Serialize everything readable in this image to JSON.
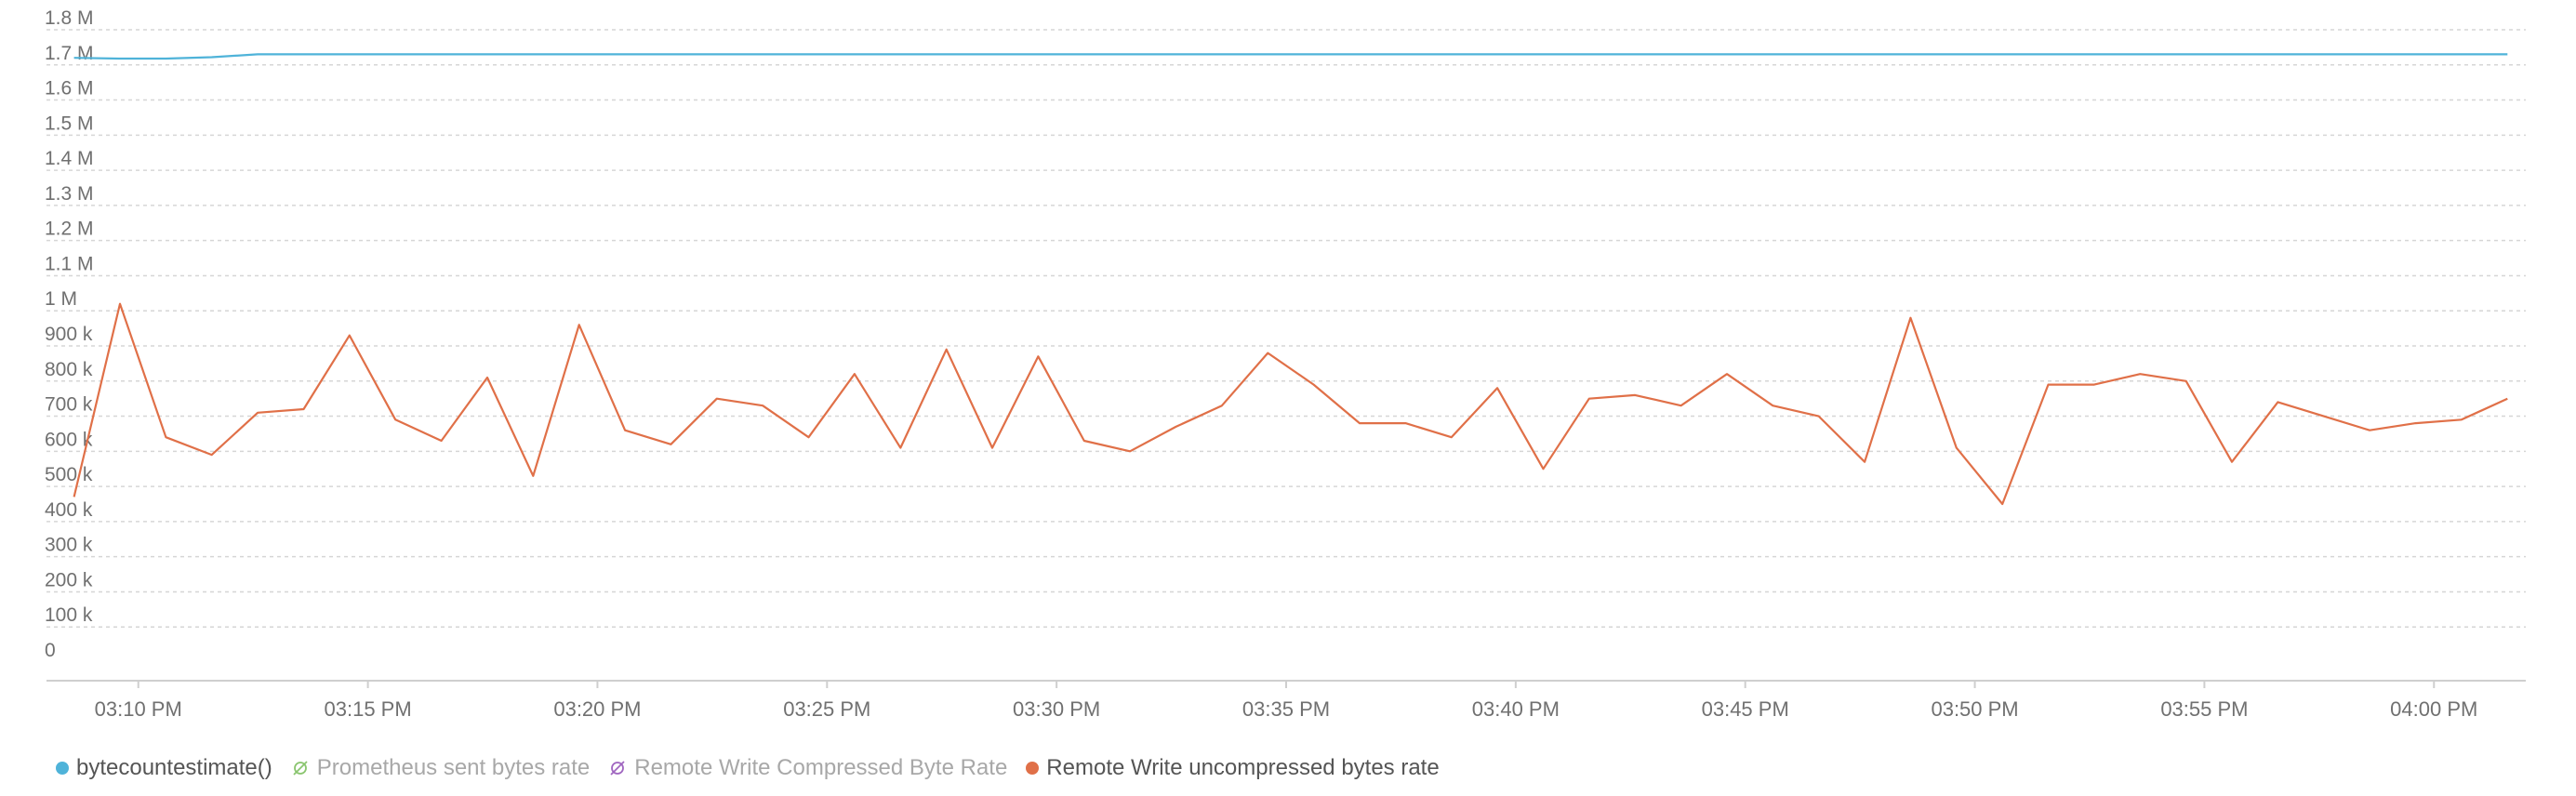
{
  "chart_data": {
    "type": "line",
    "title": "",
    "xlabel": "",
    "ylabel": "",
    "ylim": [
      0,
      1800000
    ],
    "y_ticks": [
      {
        "value": 0,
        "label": "0"
      },
      {
        "value": 100000,
        "label": "100 k"
      },
      {
        "value": 200000,
        "label": "200 k"
      },
      {
        "value": 300000,
        "label": "300 k"
      },
      {
        "value": 400000,
        "label": "400 k"
      },
      {
        "value": 500000,
        "label": "500 k"
      },
      {
        "value": 600000,
        "label": "600 k"
      },
      {
        "value": 700000,
        "label": "700 k"
      },
      {
        "value": 800000,
        "label": "800 k"
      },
      {
        "value": 900000,
        "label": "900 k"
      },
      {
        "value": 1000000,
        "label": "1 M"
      },
      {
        "value": 1100000,
        "label": "1.1 M"
      },
      {
        "value": 1200000,
        "label": "1.2 M"
      },
      {
        "value": 1300000,
        "label": "1.3 M"
      },
      {
        "value": 1400000,
        "label": "1.4 M"
      },
      {
        "value": 1500000,
        "label": "1.5 M"
      },
      {
        "value": 1600000,
        "label": "1.6 M"
      },
      {
        "value": 1700000,
        "label": "1.7 M"
      },
      {
        "value": 1800000,
        "label": "1.8 M"
      }
    ],
    "x_range": [
      "03:08",
      "04:02"
    ],
    "x_ticks": [
      {
        "time": "03:10",
        "label": "03:10 PM"
      },
      {
        "time": "03:15",
        "label": "03:15 PM"
      },
      {
        "time": "03:20",
        "label": "03:20 PM"
      },
      {
        "time": "03:25",
        "label": "03:25 PM"
      },
      {
        "time": "03:30",
        "label": "03:30 PM"
      },
      {
        "time": "03:35",
        "label": "03:35 PM"
      },
      {
        "time": "03:40",
        "label": "03:40 PM"
      },
      {
        "time": "03:45",
        "label": "03:45 PM"
      },
      {
        "time": "03:50",
        "label": "03:50 PM"
      },
      {
        "time": "03:55",
        "label": "03:55 PM"
      },
      {
        "time": "04:00",
        "label": "04:00 PM"
      }
    ],
    "grid": true,
    "legend_position": "bottom-left",
    "series": [
      {
        "name": "bytecountestimate()",
        "color": "#4fb3d9",
        "visible": true,
        "x": [
          "03:08:36",
          "03:09:36",
          "03:10:36",
          "03:11:36",
          "03:12:36",
          "03:13:36",
          "03:14:36",
          "03:15:36",
          "03:20:36",
          "03:25:36",
          "03:30:36",
          "03:35:36",
          "03:40:36",
          "03:45:36",
          "03:50:36",
          "03:55:36",
          "04:00:36",
          "04:01:36"
        ],
        "values": [
          1720000,
          1718000,
          1718000,
          1722000,
          1730000,
          1730000,
          1730000,
          1730000,
          1730000,
          1730000,
          1730000,
          1730000,
          1730000,
          1730000,
          1730000,
          1730000,
          1730000,
          1730000
        ]
      },
      {
        "name": "Prometheus sent bytes rate",
        "color": "#8ac56f",
        "visible": false,
        "x": [],
        "values": []
      },
      {
        "name": "Remote Write Compressed Byte Rate",
        "color": "#a066c0",
        "visible": false,
        "x": [],
        "values": []
      },
      {
        "name": "Remote Write uncompressed bytes rate",
        "color": "#e07048",
        "visible": true,
        "x": [
          "03:08:36",
          "03:09:36",
          "03:10:36",
          "03:11:36",
          "03:12:36",
          "03:13:36",
          "03:14:36",
          "03:15:36",
          "03:16:36",
          "03:17:36",
          "03:18:36",
          "03:19:36",
          "03:20:36",
          "03:21:36",
          "03:22:36",
          "03:23:36",
          "03:24:36",
          "03:25:36",
          "03:26:36",
          "03:27:36",
          "03:28:36",
          "03:29:36",
          "03:30:36",
          "03:31:36",
          "03:32:36",
          "03:33:36",
          "03:34:36",
          "03:35:36",
          "03:36:36",
          "03:37:36",
          "03:38:36",
          "03:39:36",
          "03:40:36",
          "03:41:36",
          "03:42:36",
          "03:43:36",
          "03:44:36",
          "03:45:36",
          "03:46:36",
          "03:47:36",
          "03:48:36",
          "03:49:36",
          "03:50:36",
          "03:51:36",
          "03:52:36",
          "03:53:36",
          "03:54:36",
          "03:55:36",
          "03:56:36",
          "03:57:36",
          "03:58:36",
          "03:59:36",
          "04:00:36",
          "04:01:36"
        ],
        "values": [
          470000,
          1020000,
          640000,
          590000,
          710000,
          720000,
          930000,
          690000,
          630000,
          810000,
          530000,
          960000,
          660000,
          620000,
          750000,
          730000,
          640000,
          820000,
          610000,
          890000,
          610000,
          870000,
          630000,
          600000,
          670000,
          730000,
          880000,
          790000,
          680000,
          680000,
          640000,
          780000,
          550000,
          750000,
          760000,
          730000,
          820000,
          730000,
          700000,
          570000,
          980000,
          610000,
          450000,
          790000,
          790000,
          820000,
          800000,
          570000,
          740000,
          700000,
          660000,
          680000,
          690000,
          750000
        ]
      }
    ]
  }
}
